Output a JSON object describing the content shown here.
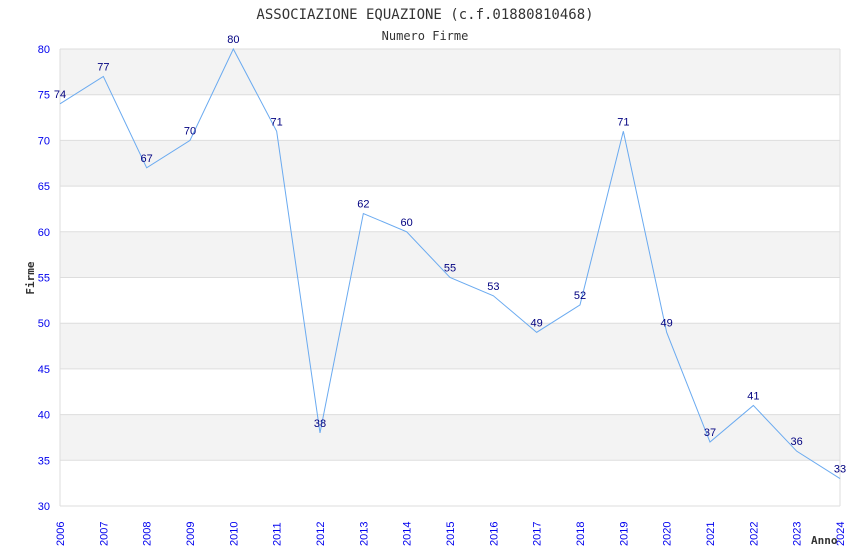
{
  "chart_data": {
    "type": "line",
    "title": "ASSOCIAZIONE EQUAZIONE (c.f.01880810468)",
    "subtitle": "Numero Firme",
    "xlabel": "Anno",
    "ylabel": "Firme",
    "x": [
      "2006",
      "2007",
      "2008",
      "2009",
      "2010",
      "2011",
      "2012",
      "2013",
      "2014",
      "2015",
      "2016",
      "2017",
      "2018",
      "2019",
      "2020",
      "2021",
      "2022",
      "2023",
      "2024"
    ],
    "values": [
      74,
      77,
      67,
      70,
      80,
      71,
      38,
      62,
      60,
      55,
      53,
      49,
      52,
      71,
      49,
      37,
      41,
      36,
      33
    ],
    "ylim": [
      30,
      80
    ],
    "yticks": [
      "30",
      "35",
      "40",
      "45",
      "50",
      "55",
      "60",
      "65",
      "70",
      "75",
      "80"
    ],
    "grid": true,
    "colors": {
      "line": "#6aaaf0",
      "tick": "#0000ee",
      "label": "#000080",
      "band": "#f3f3f3",
      "grid": "#dddddd"
    }
  }
}
